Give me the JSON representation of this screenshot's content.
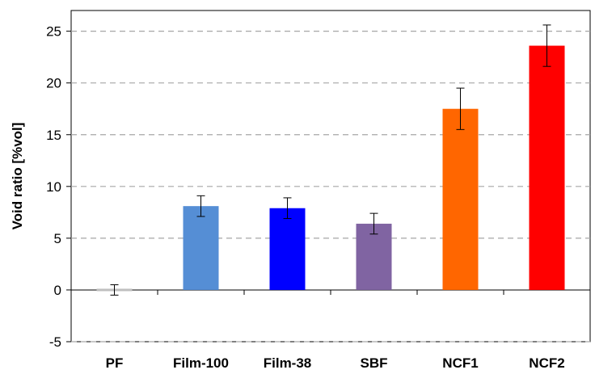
{
  "chart_data": {
    "type": "bar",
    "title": "",
    "xlabel": "",
    "ylabel": "Void ratio [%vol]",
    "ylim": [
      -5,
      27
    ],
    "yticks": [
      -5,
      0,
      5,
      10,
      15,
      20,
      25
    ],
    "grid": "horizontal-dashed",
    "legend": "none",
    "categories": [
      "PF",
      "Film-100",
      "Film-38",
      "SBF",
      "NCF1",
      "NCF2"
    ],
    "values": [
      0.0,
      8.1,
      7.9,
      6.4,
      17.5,
      23.6
    ],
    "errors": [
      0.5,
      1.0,
      1.0,
      1.0,
      2.0,
      2.0
    ],
    "colors": [
      "#bfbfbf",
      "#558ed5",
      "#0000ff",
      "#8064a2",
      "#ff6600",
      "#ff0000"
    ]
  }
}
